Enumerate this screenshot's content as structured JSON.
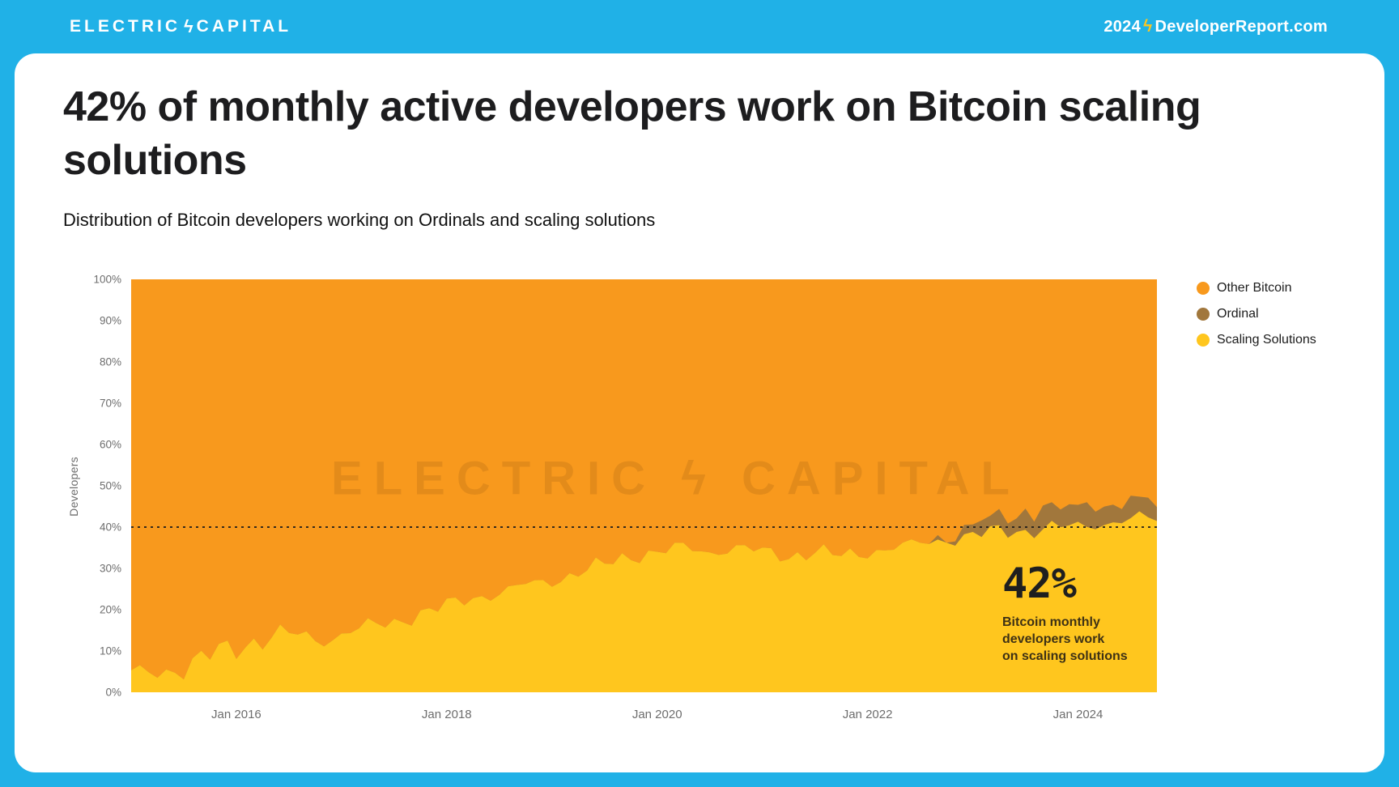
{
  "page": {
    "background": "#20B1E7"
  },
  "header": {
    "logo": {
      "part1": "ELECTRIC",
      "bolt": "ϟ",
      "part2": "CAPITAL"
    },
    "report": {
      "year": "2024",
      "bolt": "ϟ",
      "site": "DeveloperReport.com"
    }
  },
  "card": {
    "title": "42% of monthly active developers work on Bitcoin scaling solutions",
    "subtitle": "Distribution of Bitcoin developers working on Ordinals and scaling solutions"
  },
  "chart_data": {
    "type": "area",
    "stacked": true,
    "percent": true,
    "title": "Distribution of Bitcoin developers working on Ordinals and scaling solutions",
    "ylabel": "Developers",
    "ylim": [
      0,
      100
    ],
    "grid": false,
    "legend_position": "right",
    "y_ticks": [
      "0%",
      "10%",
      "20%",
      "30%",
      "40%",
      "50%",
      "60%",
      "70%",
      "80%",
      "90%",
      "100%"
    ],
    "x_ticks": [
      {
        "year": 2016,
        "label": "Jan 2016"
      },
      {
        "year": 2018,
        "label": "Jan 2018"
      },
      {
        "year": 2020,
        "label": "Jan 2020"
      },
      {
        "year": 2022,
        "label": "Jan 2022"
      },
      {
        "year": 2024,
        "label": "Jan 2024"
      }
    ],
    "x": [
      "2015-01",
      "2015-04",
      "2015-07",
      "2015-10",
      "2016-01",
      "2016-04",
      "2016-07",
      "2016-10",
      "2017-01",
      "2017-04",
      "2017-07",
      "2017-10",
      "2018-01",
      "2018-04",
      "2018-07",
      "2018-10",
      "2019-01",
      "2019-04",
      "2019-07",
      "2019-10",
      "2020-01",
      "2020-04",
      "2020-07",
      "2020-10",
      "2021-01",
      "2021-04",
      "2021-07",
      "2021-10",
      "2022-01",
      "2022-04",
      "2022-07",
      "2022-10",
      "2023-01",
      "2023-04",
      "2023-07",
      "2023-10",
      "2024-01",
      "2024-04",
      "2024-07",
      "2024-10"
    ],
    "series": [
      {
        "name": "Scaling Solutions",
        "color": "#FFC61E",
        "values": [
          4,
          5,
          6,
          9,
          11,
          13,
          14,
          13,
          14,
          16,
          17,
          19,
          21,
          23,
          24,
          26,
          27,
          29,
          31,
          33,
          34,
          35,
          34,
          35,
          34,
          33,
          34,
          33,
          34,
          35,
          36,
          37,
          38,
          39,
          39,
          40,
          40,
          41,
          42,
          42
        ]
      },
      {
        "name": "Ordinal",
        "color": "#A1773C",
        "values": [
          0,
          0,
          0,
          0,
          0,
          0,
          0,
          0,
          0,
          0,
          0,
          0,
          0,
          0,
          0,
          0,
          0,
          0,
          0,
          0,
          0,
          0,
          0,
          0,
          0,
          0,
          0,
          0,
          0,
          0,
          0,
          1,
          2,
          4,
          4,
          5,
          5,
          4,
          5,
          3
        ]
      },
      {
        "name": "Other Bitcoin",
        "color": "#F8991D",
        "values": [
          96,
          95,
          94,
          91,
          89,
          87,
          86,
          87,
          86,
          84,
          83,
          81,
          79,
          77,
          76,
          74,
          73,
          71,
          69,
          67,
          66,
          65,
          66,
          65,
          66,
          67,
          66,
          67,
          66,
          65,
          64,
          62,
          60,
          57,
          57,
          55,
          55,
          55,
          53,
          55
        ]
      }
    ],
    "reference_line": {
      "value": 40,
      "style": "dotted",
      "color": "#1b1b1b"
    },
    "watermark": "ELECTRIC ϟ CAPITAL",
    "annotation": {
      "value": "42%",
      "lines": [
        "Bitcoin monthly",
        "developers work",
        "on scaling solutions"
      ]
    },
    "legend": [
      {
        "label": "Other Bitcoin",
        "color": "#F8991D"
      },
      {
        "label": "Ordinal",
        "color": "#A1773C"
      },
      {
        "label": "Scaling Solutions",
        "color": "#FFC61E"
      }
    ]
  }
}
